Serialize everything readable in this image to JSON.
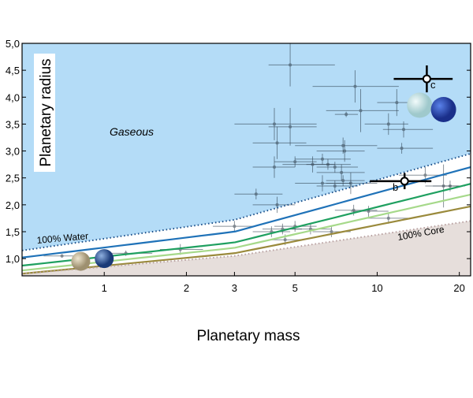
{
  "chart_data": {
    "type": "scatter",
    "title": "",
    "xlabel": "Planetary mass",
    "ylabel": "Planetary radius",
    "xscale": "log",
    "xlim": [
      0.5,
      22
    ],
    "ylim": [
      0.68,
      5.0
    ],
    "xticks": [
      1,
      2,
      3,
      5,
      10,
      20
    ],
    "xtick_labels": [
      "1",
      "2",
      "3",
      "5",
      "10",
      "20"
    ],
    "yticks": [
      1.0,
      1.5,
      2.0,
      2.5,
      3.0,
      3.5,
      4.0,
      4.5,
      5.0
    ],
    "ytick_labels": [
      "1,0",
      "1,5",
      "2,0",
      "2,5",
      "3,0",
      "3,5",
      "4,0",
      "4,5",
      "5,0"
    ],
    "regions": {
      "gaseous": {
        "label": "Gaseous",
        "color": "#b4dcf7"
      },
      "core": {
        "label": "100% Core",
        "color": "#e6dedb"
      }
    },
    "curves": [
      {
        "name": "100% Water",
        "label": "100% Water",
        "style": "dotted",
        "color": "#1a4f8a",
        "x": [
          0.5,
          3,
          22
        ],
        "y": [
          1.15,
          1.72,
          2.95
        ]
      },
      {
        "name": "blue",
        "style": "solid",
        "color": "#1f72b8",
        "x": [
          0.5,
          3,
          22
        ],
        "y": [
          1.02,
          1.5,
          2.7
        ]
      },
      {
        "name": "green",
        "style": "solid",
        "color": "#1fa060",
        "x": [
          0.5,
          3,
          22
        ],
        "y": [
          0.87,
          1.3,
          2.39
        ]
      },
      {
        "name": "light-green",
        "style": "solid",
        "color": "#a6d98a",
        "x": [
          0.5,
          3,
          22
        ],
        "y": [
          0.78,
          1.2,
          2.19
        ]
      },
      {
        "name": "olive",
        "style": "solid",
        "color": "#9a8a3c",
        "x": [
          0.5,
          3,
          22
        ],
        "y": [
          0.72,
          1.1,
          1.97
        ]
      },
      {
        "name": "100% Core",
        "label": "100% Core",
        "style": "dotted",
        "color": "#b8a0a0",
        "x": [
          0.5,
          3,
          22
        ],
        "y": [
          0.72,
          1.05,
          1.7
        ]
      }
    ],
    "points": [
      [
        4.8,
        4.6,
        4.0,
        7.0,
        0.4
      ],
      [
        8.3,
        4.2,
        5.8,
        12,
        0.3
      ],
      [
        8.7,
        3.75,
        6.5,
        12,
        0.4
      ],
      [
        7.7,
        3.68,
        7.0,
        8.5,
        0.05
      ],
      [
        11.8,
        3.9,
        10,
        13,
        0.25
      ],
      [
        11,
        3.5,
        9,
        13,
        0.2
      ],
      [
        12.5,
        3.4,
        10.5,
        16,
        0.15
      ],
      [
        4.2,
        3.5,
        3,
        6,
        0.3
      ],
      [
        4.8,
        3.45,
        4,
        6,
        0.35
      ],
      [
        4.3,
        3.15,
        3.5,
        5.5,
        0.3
      ],
      [
        12.3,
        3.05,
        10,
        16,
        0.1
      ],
      [
        7.5,
        3.1,
        5,
        10,
        0.15
      ],
      [
        7.6,
        3.0,
        6,
        9,
        0.2
      ],
      [
        4.2,
        2.7,
        3.5,
        5,
        0.2
      ],
      [
        5.0,
        2.8,
        4.2,
        6,
        0.1
      ],
      [
        5.8,
        2.75,
        4.5,
        7,
        0.15
      ],
      [
        6.3,
        2.85,
        5,
        8,
        0.1
      ],
      [
        6.6,
        2.75,
        5.5,
        8,
        0.1
      ],
      [
        7.0,
        2.7,
        6,
        8.5,
        0.1
      ],
      [
        7.4,
        2.6,
        6,
        9,
        0.15
      ],
      [
        3.6,
        2.2,
        3,
        4.5,
        0.1
      ],
      [
        4.3,
        2.0,
        3.5,
        5,
        0.15
      ],
      [
        6.3,
        2.4,
        5,
        8,
        0.15
      ],
      [
        7.0,
        2.35,
        6,
        8.5,
        0.1
      ],
      [
        7.5,
        2.45,
        6.5,
        9,
        0.1
      ],
      [
        8.0,
        2.4,
        6.5,
        10,
        0.2
      ],
      [
        15,
        2.55,
        12,
        18,
        0.15
      ],
      [
        17.5,
        2.35,
        15,
        20,
        0.4
      ],
      [
        18.5,
        2.35,
        16,
        21,
        0.1
      ],
      [
        8.2,
        1.9,
        7,
        10,
        0.1
      ],
      [
        9.3,
        1.88,
        8,
        11,
        0.1
      ],
      [
        11,
        1.75,
        9,
        13,
        0.1
      ],
      [
        3.0,
        1.6,
        2.5,
        3.6,
        0.1
      ],
      [
        4.1,
        1.5,
        3.5,
        4.8,
        0.1
      ],
      [
        4.5,
        1.55,
        3.8,
        5.3,
        0.1
      ],
      [
        5.0,
        1.6,
        4.2,
        6,
        0.1
      ],
      [
        5.7,
        1.55,
        4.8,
        6.8,
        0.1
      ],
      [
        6.8,
        1.5,
        5.8,
        8,
        0.1
      ],
      [
        4.6,
        1.35,
        4,
        5.3,
        0.1
      ],
      [
        1.9,
        1.17,
        1.6,
        2.3,
        0.1
      ],
      [
        1.2,
        1.1,
        1.0,
        1.5,
        0.05
      ],
      [
        0.7,
        1.05,
        0.6,
        0.85,
        0.03
      ]
    ],
    "highlighted": [
      {
        "label": "b",
        "mass": 12.6,
        "radius": 2.44,
        "mass_range": [
          9.4,
          15.8
        ],
        "radius_err": 0.15
      },
      {
        "label": "c",
        "mass": 15.2,
        "radius": 4.34,
        "mass_range": [
          11.5,
          18.9
        ],
        "radius_err": 0.25
      }
    ],
    "planet_icons": [
      {
        "name": "venus",
        "mass": 0.82,
        "radius": 0.95,
        "color": "#cbbf9f"
      },
      {
        "name": "earth",
        "mass": 1.0,
        "radius": 1.0,
        "color": "#2d5aa8"
      },
      {
        "name": "uranus",
        "mass": 14.3,
        "radius": 3.85,
        "color": "#d4eef0"
      },
      {
        "name": "neptune",
        "mass": 17.5,
        "radius": 3.77,
        "color": "#2e55c9"
      }
    ]
  }
}
